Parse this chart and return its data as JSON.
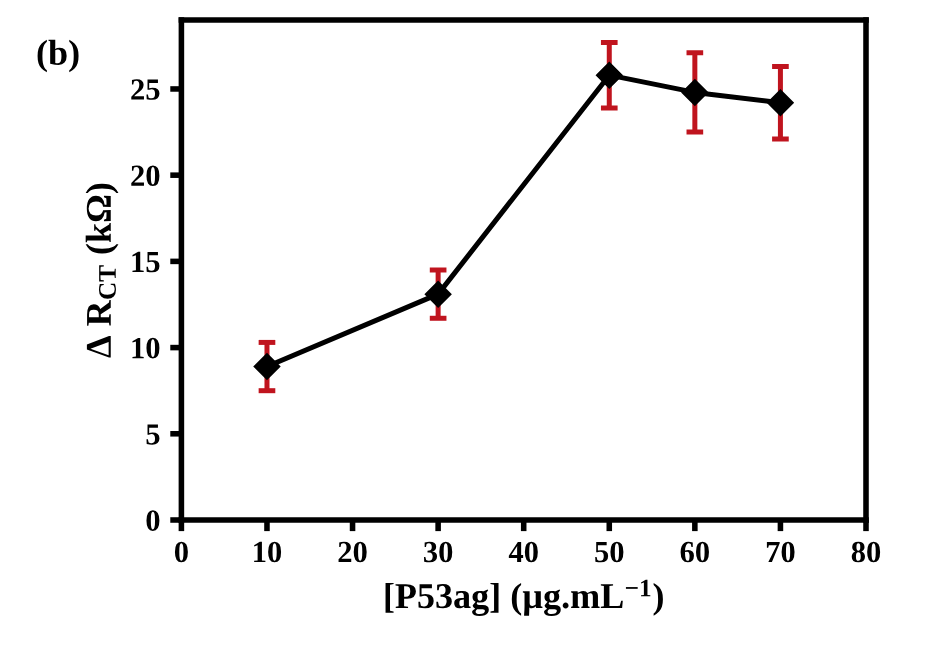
{
  "chart_data": {
    "type": "line",
    "xlabel": "[P53ag] (µg.mL$^{−1}$)",
    "ylabel": "Δ R$_{CT}$ (kΩ)",
    "annotations": [
      "(b)"
    ],
    "x": [
      10,
      30,
      50,
      60,
      70
    ],
    "series": [
      {
        "color": "#000000",
        "values": [
          8.9,
          13.1,
          25.8,
          24.8,
          24.2
        ],
        "errors": [
          1.4,
          1.4,
          1.9,
          2.3,
          2.1
        ]
      }
    ],
    "marker": "diamond",
    "line_style": "solid",
    "grid": false,
    "xlim": [
      0,
      80
    ],
    "xticks": [
      0,
      10,
      20,
      30,
      40,
      50,
      60,
      70,
      80
    ],
    "ylim": [
      0,
      29
    ],
    "yticks": [
      0,
      5,
      10,
      15,
      20,
      25
    ]
  }
}
